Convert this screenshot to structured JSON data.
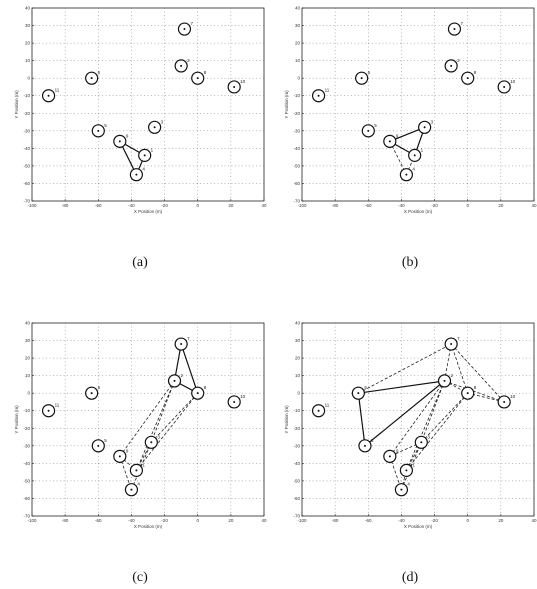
{
  "figure": {
    "captions": [
      "(a)",
      "(b)",
      "(c)",
      "(d)"
    ]
  },
  "chart_data": [
    {
      "type": "scatter",
      "panel": "(a)",
      "xlabel": "X Position (m)",
      "ylabel": "Y Position (m)",
      "xlim": [
        -100,
        40
      ],
      "ylim": [
        -70,
        40
      ],
      "xticks": [
        -100,
        -80,
        -60,
        -40,
        -20,
        0,
        20,
        40
      ],
      "yticks": [
        40,
        30,
        20,
        10,
        0,
        -10,
        -20,
        -30,
        -40,
        -50,
        -60,
        -70
      ],
      "grid": true,
      "nodes": [
        {
          "label": "1",
          "x": -32,
          "y": -44
        },
        {
          "label": "2",
          "x": -10,
          "y": 7
        },
        {
          "label": "3",
          "x": -26,
          "y": -28
        },
        {
          "label": "4",
          "x": -37,
          "y": -55
        },
        {
          "label": "5",
          "x": -60,
          "y": -30
        },
        {
          "label": "6",
          "x": -64,
          "y": 0
        },
        {
          "label": "7",
          "x": -8,
          "y": 28
        },
        {
          "label": "8",
          "x": 0,
          "y": 0
        },
        {
          "label": "9",
          "x": -47,
          "y": -36
        },
        {
          "label": "10",
          "x": 22,
          "y": -5
        },
        {
          "label": "11",
          "x": -90,
          "y": -10
        }
      ],
      "links_solid": [
        [
          9,
          1
        ],
        [
          1,
          4
        ],
        [
          4,
          9
        ]
      ],
      "links_dashed": []
    },
    {
      "type": "scatter",
      "panel": "(b)",
      "xlabel": "X Position (m)",
      "ylabel": "Y Position (m)",
      "xlim": [
        -100,
        40
      ],
      "ylim": [
        -70,
        40
      ],
      "xticks": [
        -100,
        -80,
        -60,
        -40,
        -20,
        0,
        20,
        40
      ],
      "yticks": [
        40,
        30,
        20,
        10,
        0,
        -10,
        -20,
        -30,
        -40,
        -50,
        -60,
        -70
      ],
      "grid": true,
      "nodes": [
        {
          "label": "1",
          "x": -32,
          "y": -44
        },
        {
          "label": "2",
          "x": -10,
          "y": 7
        },
        {
          "label": "3",
          "x": -26,
          "y": -28
        },
        {
          "label": "4",
          "x": -37,
          "y": -55
        },
        {
          "label": "5",
          "x": -60,
          "y": -30
        },
        {
          "label": "6",
          "x": -64,
          "y": 0
        },
        {
          "label": "7",
          "x": -8,
          "y": 28
        },
        {
          "label": "8",
          "x": 0,
          "y": 0
        },
        {
          "label": "9",
          "x": -47,
          "y": -36
        },
        {
          "label": "10",
          "x": 22,
          "y": -5
        },
        {
          "label": "11",
          "x": -90,
          "y": -10
        }
      ],
      "links_solid": [
        [
          9,
          3
        ],
        [
          3,
          1
        ],
        [
          1,
          9
        ]
      ],
      "links_dashed": [
        [
          9,
          4
        ],
        [
          4,
          1
        ]
      ]
    },
    {
      "type": "scatter",
      "panel": "(c)",
      "xlabel": "X Position (m)",
      "ylabel": "Y Position (m)",
      "xlim": [
        -100,
        40
      ],
      "ylim": [
        -70,
        40
      ],
      "xticks": [
        -100,
        -80,
        -60,
        -40,
        -20,
        0,
        20,
        40
      ],
      "yticks": [
        40,
        30,
        20,
        10,
        0,
        -10,
        -20,
        -30,
        -40,
        -50,
        -60,
        -70
      ],
      "grid": true,
      "nodes": [
        {
          "label": "1",
          "x": -37,
          "y": -44
        },
        {
          "label": "2",
          "x": -14,
          "y": 7
        },
        {
          "label": "3",
          "x": -28,
          "y": -28
        },
        {
          "label": "4",
          "x": -40,
          "y": -55
        },
        {
          "label": "5",
          "x": -60,
          "y": -30
        },
        {
          "label": "6",
          "x": -64,
          "y": 0
        },
        {
          "label": "7",
          "x": -10,
          "y": 28
        },
        {
          "label": "8",
          "x": 0,
          "y": 0
        },
        {
          "label": "9",
          "x": -47,
          "y": -36
        },
        {
          "label": "10",
          "x": 22,
          "y": -5
        },
        {
          "label": "11",
          "x": -90,
          "y": -10
        }
      ],
      "links_solid": [
        [
          2,
          7
        ],
        [
          7,
          8
        ],
        [
          8,
          2
        ]
      ],
      "links_dashed": [
        [
          2,
          9
        ],
        [
          9,
          4
        ],
        [
          4,
          3
        ],
        [
          3,
          8
        ],
        [
          2,
          3
        ],
        [
          3,
          1
        ],
        [
          1,
          8
        ],
        [
          2,
          1
        ],
        [
          9,
          1
        ]
      ]
    },
    {
      "type": "scatter",
      "panel": "(d)",
      "xlabel": "X Position (m)",
      "ylabel": "Y Position (m)",
      "xlim": [
        -100,
        40
      ],
      "ylim": [
        -70,
        40
      ],
      "xticks": [
        -100,
        -80,
        -60,
        -40,
        -20,
        0,
        20,
        40
      ],
      "yticks": [
        40,
        30,
        20,
        10,
        0,
        -10,
        -20,
        -30,
        -40,
        -50,
        -60,
        -70
      ],
      "grid": true,
      "nodes": [
        {
          "label": "1",
          "x": -37,
          "y": -44
        },
        {
          "label": "2",
          "x": -14,
          "y": 7
        },
        {
          "label": "3",
          "x": -28,
          "y": -28
        },
        {
          "label": "4",
          "x": -40,
          "y": -55
        },
        {
          "label": "5",
          "x": -62,
          "y": -30
        },
        {
          "label": "6",
          "x": -66,
          "y": 0
        },
        {
          "label": "7",
          "x": -10,
          "y": 28
        },
        {
          "label": "8",
          "x": 0,
          "y": 0
        },
        {
          "label": "9",
          "x": -47,
          "y": -36
        },
        {
          "label": "10",
          "x": 22,
          "y": -5
        },
        {
          "label": "11",
          "x": -90,
          "y": -10
        }
      ],
      "links_solid": [
        [
          6,
          2
        ],
        [
          2,
          5
        ],
        [
          5,
          6
        ]
      ],
      "links_dashed": [
        [
          6,
          7
        ],
        [
          7,
          10
        ],
        [
          10,
          8
        ],
        [
          8,
          7
        ],
        [
          2,
          7
        ],
        [
          2,
          10
        ],
        [
          2,
          8
        ],
        [
          2,
          3
        ],
        [
          3,
          8
        ],
        [
          3,
          9
        ],
        [
          9,
          4
        ],
        [
          4,
          1
        ],
        [
          1,
          8
        ],
        [
          1,
          3
        ],
        [
          2,
          1
        ],
        [
          9,
          2
        ],
        [
          4,
          3
        ]
      ]
    }
  ]
}
